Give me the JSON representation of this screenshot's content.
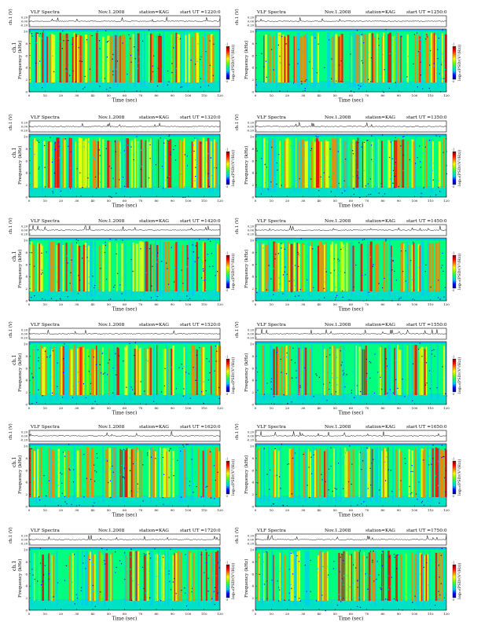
{
  "page": {
    "panel_header_left": "VLF Spectra",
    "date": "Nov.1.2008",
    "station_label": "station=KAG",
    "start_prefix": "start  UT  =",
    "waveform_ylabel": "ch.1 (V)",
    "waveform_ticks": [
      "0.20",
      "0.00",
      "-0.20"
    ],
    "spectrogram_ylabel_prefix": "ch.1",
    "frequency_ylabel": "Frequency  (kHz)",
    "colorbar_label": "log₁₀(PSD/(V²/Hz))",
    "colorbar_ticks": [
      "-1",
      "-2",
      "-3",
      "-4",
      "-5"
    ],
    "xlabel": "Time  (sec)"
  },
  "chart_data": [
    {
      "type": "heatmap",
      "start_ut": "1220:0",
      "xlim": [
        0,
        120
      ],
      "ylim": [
        0,
        10
      ],
      "x_ticks": [
        "0",
        "10",
        "20",
        "30",
        "40",
        "50",
        "60",
        "70",
        "80",
        "90",
        "100",
        "110",
        "120"
      ],
      "y_ticks": [
        "0",
        "2",
        "4",
        "6",
        "8",
        "10"
      ],
      "show_channel_label": true
    },
    {
      "type": "heatmap",
      "start_ut": "1250:0",
      "xlim": [
        0,
        120
      ],
      "ylim": [
        0,
        10
      ],
      "x_ticks": [
        "0",
        "10",
        "20",
        "30",
        "40",
        "50",
        "60",
        "70",
        "80",
        "90",
        "100",
        "110",
        "120"
      ],
      "y_ticks": [
        "0",
        "2",
        "4",
        "6",
        "8",
        "10"
      ],
      "show_channel_label": false
    },
    {
      "type": "heatmap",
      "start_ut": "1320:0",
      "xlim": [
        0,
        120
      ],
      "ylim": [
        0,
        10
      ],
      "x_ticks": [
        "0",
        "10",
        "20",
        "30",
        "40",
        "50",
        "60",
        "70",
        "80",
        "90",
        "100",
        "110",
        "120"
      ],
      "y_ticks": [
        "0",
        "2",
        "4",
        "6",
        "8",
        "10"
      ],
      "show_channel_label": true
    },
    {
      "type": "heatmap",
      "start_ut": "1350:0",
      "xlim": [
        0,
        120
      ],
      "ylim": [
        0,
        10
      ],
      "x_ticks": [
        "0",
        "10",
        "20",
        "30",
        "40",
        "50",
        "60",
        "70",
        "80",
        "90",
        "100",
        "110",
        "120"
      ],
      "y_ticks": [
        "0",
        "2",
        "4",
        "6",
        "8",
        "10"
      ],
      "show_channel_label": false
    },
    {
      "type": "heatmap",
      "start_ut": "1420:0",
      "xlim": [
        0,
        120
      ],
      "ylim": [
        0,
        10
      ],
      "x_ticks": [
        "0",
        "10",
        "20",
        "30",
        "40",
        "50",
        "60",
        "70",
        "80",
        "90",
        "100",
        "110",
        "120"
      ],
      "y_ticks": [
        "0",
        "2",
        "4",
        "6",
        "8",
        "10"
      ],
      "show_channel_label": true
    },
    {
      "type": "heatmap",
      "start_ut": "1450:0",
      "xlim": [
        0,
        120
      ],
      "ylim": [
        0,
        10
      ],
      "x_ticks": [
        "0",
        "10",
        "20",
        "30",
        "40",
        "50",
        "60",
        "70",
        "80",
        "90",
        "100",
        "110",
        "120"
      ],
      "y_ticks": [
        "0",
        "2",
        "4",
        "6",
        "8",
        "10"
      ],
      "show_channel_label": false
    },
    {
      "type": "heatmap",
      "start_ut": "1520:0",
      "xlim": [
        0,
        120
      ],
      "ylim": [
        0,
        10
      ],
      "x_ticks": [
        "0",
        "10",
        "20",
        "30",
        "40",
        "50",
        "60",
        "70",
        "80",
        "90",
        "100",
        "110",
        "120"
      ],
      "y_ticks": [
        "0",
        "2",
        "4",
        "6",
        "8",
        "10"
      ],
      "show_channel_label": true
    },
    {
      "type": "heatmap",
      "start_ut": "1550:0",
      "xlim": [
        0,
        120
      ],
      "ylim": [
        0,
        10
      ],
      "x_ticks": [
        "0",
        "10",
        "20",
        "30",
        "40",
        "50",
        "60",
        "70",
        "80",
        "90",
        "100",
        "110",
        "120"
      ],
      "y_ticks": [
        "0",
        "2",
        "4",
        "6",
        "8",
        "10"
      ],
      "show_channel_label": false
    },
    {
      "type": "heatmap",
      "start_ut": "1620:0",
      "xlim": [
        0,
        120
      ],
      "ylim": [
        0,
        10
      ],
      "x_ticks": [
        "0",
        "10",
        "20",
        "30",
        "40",
        "50",
        "60",
        "70",
        "80",
        "90",
        "100",
        "110",
        "120"
      ],
      "y_ticks": [
        "0",
        "2",
        "4",
        "6",
        "8",
        "10"
      ],
      "show_channel_label": true
    },
    {
      "type": "heatmap",
      "start_ut": "1650:0",
      "xlim": [
        0,
        120
      ],
      "ylim": [
        0,
        10
      ],
      "x_ticks": [
        "0",
        "10",
        "20",
        "30",
        "40",
        "50",
        "60",
        "70",
        "80",
        "90",
        "100",
        "110",
        "120"
      ],
      "y_ticks": [
        "0",
        "2",
        "4",
        "6",
        "8",
        "10"
      ],
      "show_channel_label": false
    },
    {
      "type": "heatmap",
      "start_ut": "1720:0",
      "xlim": [
        0,
        120
      ],
      "ylim": [
        0,
        10
      ],
      "x_ticks": [
        "0",
        "10",
        "20",
        "30",
        "40",
        "50",
        "60",
        "70",
        "80",
        "90",
        "100",
        "110",
        "120"
      ],
      "y_ticks": [
        "0",
        "2",
        "4",
        "6",
        "8",
        "10"
      ],
      "show_channel_label": true
    },
    {
      "type": "heatmap",
      "start_ut": "1750:0",
      "xlim": [
        0,
        120
      ],
      "ylim": [
        0,
        10
      ],
      "x_ticks": [
        "0",
        "10",
        "20",
        "30",
        "40",
        "50",
        "60",
        "70",
        "80",
        "90",
        "100",
        "110",
        "120"
      ],
      "y_ticks": [
        "0",
        "2",
        "4",
        "6",
        "8",
        "10"
      ],
      "show_channel_label": false
    }
  ],
  "colors": {
    "colormap": [
      "#000080",
      "#0000ff",
      "#00c8ff",
      "#00ff80",
      "#80ff00",
      "#ffff00",
      "#ff8000",
      "#ff0000",
      "#800000"
    ],
    "axis": "#000000"
  }
}
